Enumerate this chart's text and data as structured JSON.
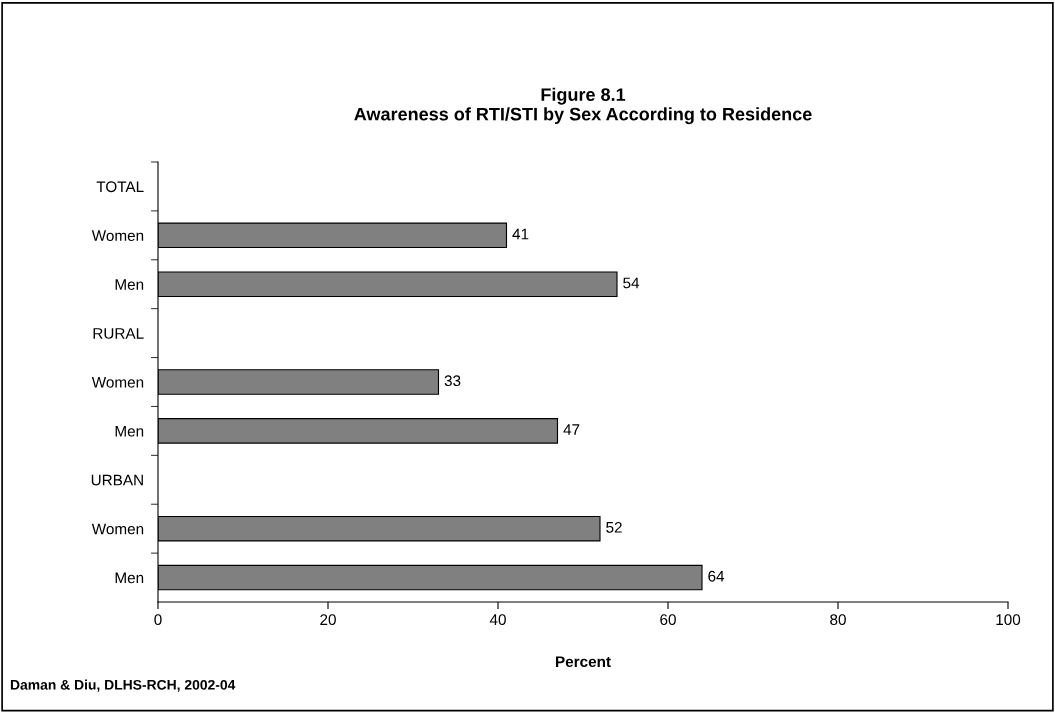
{
  "chart_data": {
    "type": "bar",
    "orientation": "horizontal",
    "title": "Figure 8.1\nAwareness of RTI/STI by Sex According to Residence",
    "xlabel": "Percent",
    "categories": [
      "TOTAL",
      "Women",
      "Men",
      "RURAL",
      "Women",
      "Men",
      "URBAN",
      "Women",
      "Men"
    ],
    "values": [
      null,
      41,
      54,
      null,
      33,
      47,
      null,
      52,
      64
    ],
    "color": "#808080",
    "xlim": [
      0,
      100
    ],
    "xticks": [
      0,
      20,
      40,
      60,
      80,
      100
    ],
    "data_labels": true,
    "grid": false,
    "legend": false,
    "annotations": [
      "Daman & Diu, DLHS-RCH, 2002-04"
    ]
  }
}
